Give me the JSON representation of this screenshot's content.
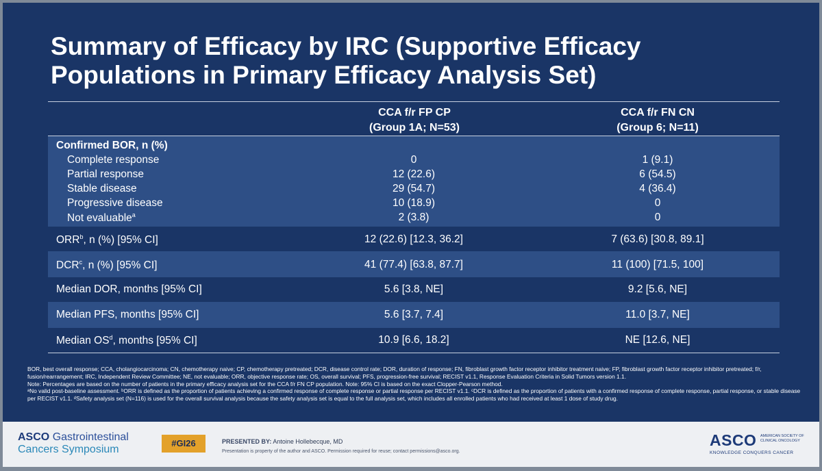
{
  "title": {
    "line1": "Summary of Efficacy by IRC (Supportive Efficacy",
    "line2": "Populations in Primary Efficacy Analysis Set)"
  },
  "table": {
    "columns": [
      {
        "line1": "CCA f/r FP CP",
        "line2": "(Group 1A; N=53)"
      },
      {
        "line1": "CCA f/r FN CN",
        "line2": "(Group 6; N=11)"
      }
    ],
    "bor_header": "Confirmed BOR, n (%)",
    "bor_rows": [
      {
        "label": "Complete response",
        "c1": "0",
        "c2": "1 (9.1)"
      },
      {
        "label": "Partial response",
        "c1": "12 (22.6)",
        "c2": "6 (54.5)"
      },
      {
        "label": "Stable disease",
        "c1": "29 (54.7)",
        "c2": "4 (36.4)"
      },
      {
        "label": "Progressive disease",
        "c1": "10 (18.9)",
        "c2": "0"
      },
      {
        "label": "Not evaluable",
        "sup": "a",
        "c1": "2 (3.8)",
        "c2": "0"
      }
    ],
    "rows": [
      {
        "label_pre": "ORR",
        "sup": "b",
        "label_post": ", n (%) [95% CI]",
        "c1": "12 (22.6) [12.3, 36.2]",
        "c2": "7 (63.6) [30.8, 89.1]"
      },
      {
        "label_pre": "DCR",
        "sup": "c",
        "label_post": ", n (%) [95% CI]",
        "c1": "41 (77.4) [63.8, 87.7]",
        "c2": "11 (100) [71.5, 100]"
      },
      {
        "label_pre": "Median DOR, months [95% CI]",
        "sup": "",
        "label_post": "",
        "c1": "5.6 [3.8, NE]",
        "c2": "9.2 [5.6, NE]"
      },
      {
        "label_pre": "Median PFS, months [95% CI]",
        "sup": "",
        "label_post": "",
        "c1": "5.6 [3.7, 7.4]",
        "c2": "11.0 [3.7, NE]"
      },
      {
        "label_pre": "Median OS",
        "sup": "d",
        "label_post": ", months [95% CI]",
        "c1": "10.9 [6.6, 18.2]",
        "c2": "NE [12.6, NE]"
      }
    ]
  },
  "footnotes": {
    "abbrev": "BOR, best overall response; CCA, cholangiocarcinoma; CN, chemotherapy naive; CP, chemotherapy pretreated; DCR, disease control rate; DOR, duration of response; FN, fibroblast growth factor receptor inhibitor treatment naive; FP, fibroblast growth factor receptor inhibitor pretreated; f/r, fusion/rearrangement; IRC, Independent Review Committee; NE, not evaluable; ORR, objective response rate; OS, overall survival; PFS, progression-free survival; RECIST v1.1, Response Evaluation Criteria in Solid Tumors version 1.1.",
    "note": "Note: Percentages are based on the number of patients in the primary efficacy analysis set for the CCA f/r FN CP population. Note: 95% CI is based on the exact Clopper-Pearson method.",
    "defs": "ᵃNo valid post-baseline assessment. ᵇORR is defined as the proportion of patients achieving a confirmed response of complete response or partial response per RECIST v1.1. ᶜDCR is defined as the proportion of patients with a confirmed response of complete response, partial response, or stable disease per RECIST v1.1. ᵈSafety analysis set (N=116) is used for the overall survival analysis because the safety analysis set is equal to the full analysis set, which includes all enrolled patients who had received at least 1 dose of study drug."
  },
  "footer": {
    "logo_line1_bold": "ASCO",
    "logo_line1_rest": "Gastrointestinal",
    "logo_line2": "Cancers Symposium",
    "hashtag": "#GI26",
    "presented_label": "PRESENTED BY:",
    "presenter": "Antoine Hollebecque, MD",
    "property_note": "Presentation is property of the author and ASCO. Permission required for reuse; contact permissions@asco.org.",
    "asco_big": "ASCO",
    "asco_small": "AMERICAN SOCIETY OF CLINICAL ONCOLOGY",
    "asco_tagline": "KNOWLEDGE CONQUERS CANCER"
  },
  "colors": {
    "slide_bg": "#1a3566",
    "band": "#2e4f86",
    "hashtag": "#e3a12a"
  }
}
